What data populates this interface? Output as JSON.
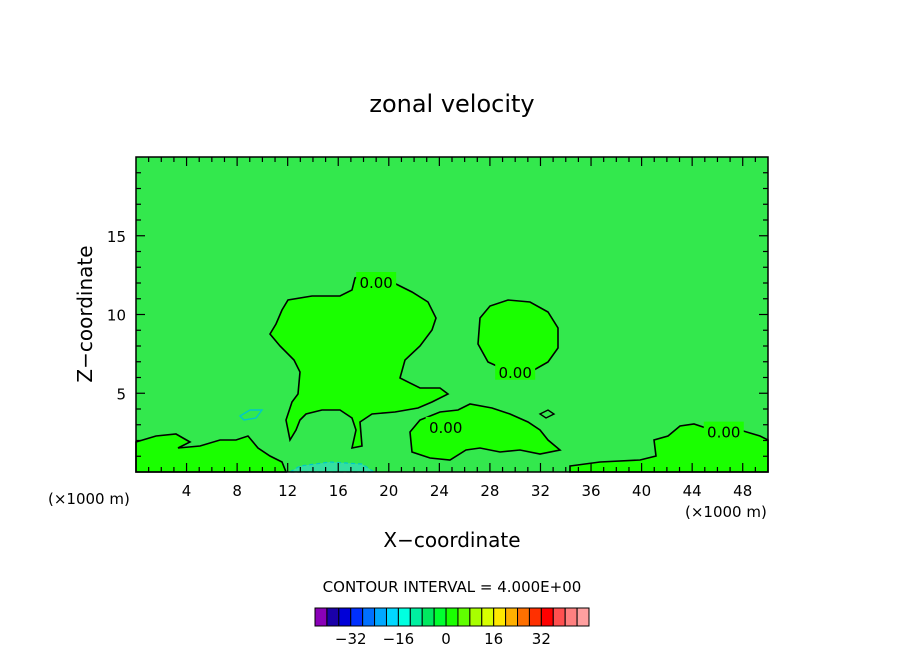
{
  "chart_data": {
    "type": "heatmap",
    "title": "zonal velocity",
    "xlabel": "X−coordinate",
    "ylabel": "Z−coordinate",
    "x_unit_left": "(×1000 m)",
    "x_unit_right": "(×1000 m)",
    "xlim": [
      0,
      50
    ],
    "ylim": [
      0,
      20
    ],
    "x_ticks": [
      "4",
      "8",
      "12",
      "16",
      "20",
      "24",
      "28",
      "32",
      "36",
      "40",
      "44",
      "48"
    ],
    "x_tick_values": [
      4,
      8,
      12,
      16,
      20,
      24,
      28,
      32,
      36,
      40,
      44,
      48
    ],
    "y_ticks": [
      "5",
      "10",
      "15"
    ],
    "y_tick_values": [
      5,
      10,
      15
    ],
    "background_color": "#33e84d",
    "region_color": "#1aff00",
    "contour_labels": [
      {
        "text": "0.00",
        "x": 19.0,
        "y": 12.0
      },
      {
        "text": "0.00",
        "x": 30.0,
        "y": 6.3
      },
      {
        "text": "0.00",
        "x": 24.5,
        "y": 2.8
      },
      {
        "text": "0.00",
        "x": 46.5,
        "y": 2.5
      }
    ],
    "contour_interval_text": "CONTOUR INTERVAL = 4.000E+00",
    "colorbar": {
      "colors": [
        "#8a00b8",
        "#1a00a8",
        "#0000d8",
        "#0030ff",
        "#0070ff",
        "#00a8ff",
        "#00d8ff",
        "#00ffe0",
        "#00f0a0",
        "#00e860",
        "#00ff30",
        "#1aff00",
        "#60ff00",
        "#a8ff00",
        "#d8ff00",
        "#ffe800",
        "#ffb000",
        "#ff7000",
        "#ff3000",
        "#ff0000",
        "#ff5050",
        "#ff8080",
        "#ffa0a0"
      ],
      "tick_labels": [
        "−32",
        "−16",
        "0",
        "16",
        "32"
      ],
      "tick_values": [
        -32,
        -16,
        0,
        16,
        32
      ],
      "min": -44,
      "max": 48
    }
  }
}
